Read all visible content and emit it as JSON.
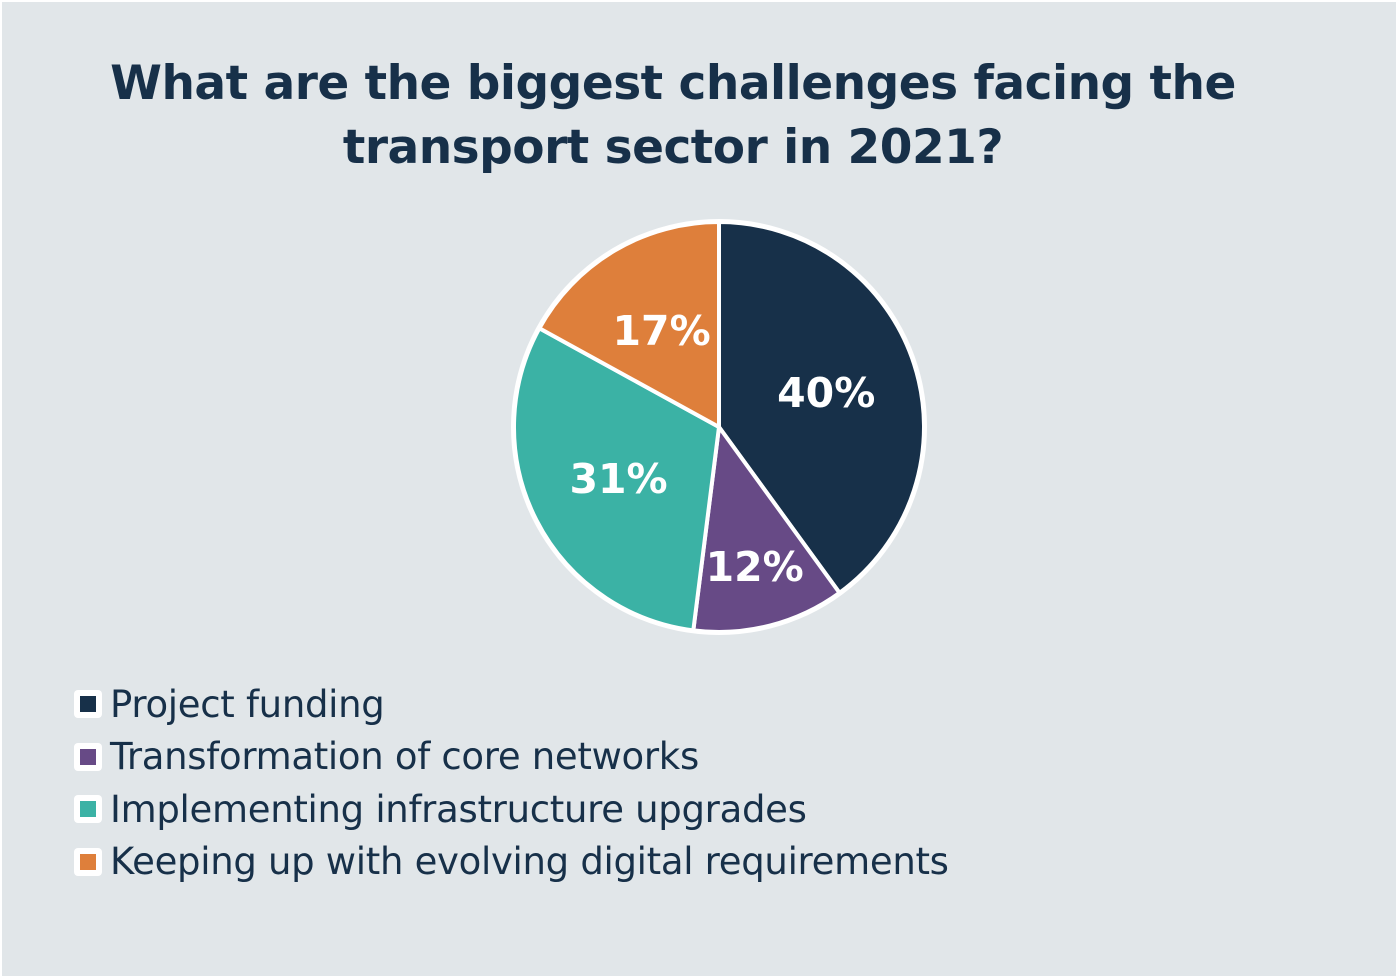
{
  "chart_data": {
    "type": "pie",
    "title": "What are the biggest challenges facing the transport sector in 2021?",
    "start_angle": "12 o'clock",
    "direction": "clockwise",
    "slices": [
      {
        "label": "Project funding",
        "value": 40,
        "data_label": "40%",
        "color": "#173049"
      },
      {
        "label": "Transformation of core networks",
        "value": 12,
        "data_label": "12%",
        "color": "#674a86"
      },
      {
        "label": "Implementing infrastructure upgrades",
        "value": 31,
        "data_label": "31%",
        "color": "#3bb2a5"
      },
      {
        "label": "Keeping up with evolving digital requirements",
        "value": 17,
        "data_label": "17%",
        "color": "#de7f3b"
      }
    ],
    "legend_position": "bottom-left",
    "background": "#e1e6e9"
  }
}
